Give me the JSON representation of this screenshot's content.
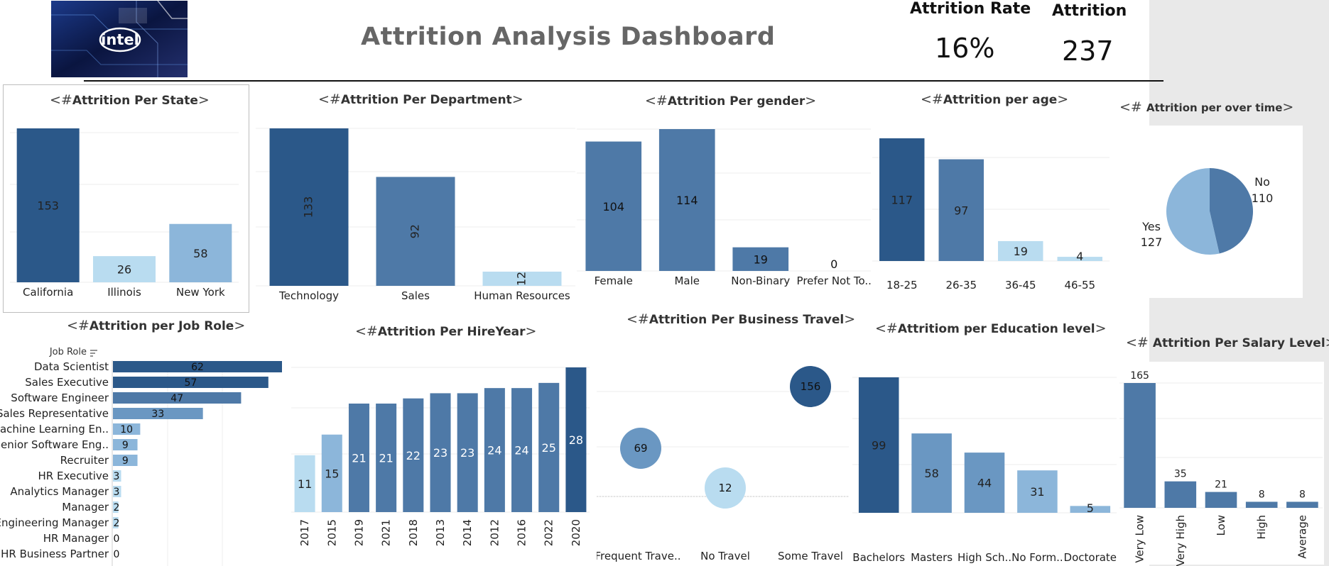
{
  "header": {
    "title": "Attrition Analysis Dashboard",
    "logo_text": "intel",
    "kpis": [
      {
        "label": "Attrition Rate",
        "value": "16%"
      },
      {
        "label": "Attrition",
        "value": "237"
      }
    ]
  },
  "colors": {
    "dark": "#2b5889",
    "mid": "#4e79a7",
    "midlight": "#6a97c2",
    "light": "#8cb6da",
    "pale": "#b9dcf0"
  },
  "chart_data": [
    {
      "id": "state",
      "type": "bar",
      "title": "Attrition Per State",
      "title_prefix": "<#",
      "title_suffix": ">",
      "categories": [
        "California",
        "Illinois",
        "New York"
      ],
      "values": [
        153,
        26,
        58
      ],
      "ylim": [
        0,
        153
      ]
    },
    {
      "id": "department",
      "type": "bar",
      "title": "Attrition Per Department",
      "title_prefix": "<#",
      "title_suffix": ">",
      "categories": [
        "Technology",
        "Sales",
        "Human Resources"
      ],
      "values": [
        133,
        92,
        12
      ],
      "ylim": [
        0,
        133
      ]
    },
    {
      "id": "gender",
      "type": "bar",
      "title": "Attrition Per gender",
      "title_prefix": "<#",
      "title_suffix": ">",
      "categories": [
        "Female",
        "Male",
        "Non-Binary",
        "Prefer Not To.."
      ],
      "values": [
        104,
        114,
        19,
        0
      ],
      "ylim": [
        0,
        114
      ]
    },
    {
      "id": "age",
      "type": "bar",
      "title": "Attrition per age",
      "title_prefix": "<#",
      "title_suffix": ">",
      "categories": [
        "18-25",
        "26-35",
        "36-45",
        "46-55"
      ],
      "values": [
        117,
        97,
        19,
        4
      ],
      "ylim": [
        0,
        117
      ]
    },
    {
      "id": "overtime",
      "type": "pie",
      "title": "Attrition per over time",
      "title_prefix": "<# ",
      "title_suffix": ">",
      "categories": [
        "No",
        "Yes"
      ],
      "values": [
        110,
        127
      ]
    },
    {
      "id": "jobrole",
      "type": "bar",
      "orientation": "horizontal",
      "title": "Attrition per Job Role",
      "title_prefix": "<#",
      "title_suffix": ">",
      "axis_header": "Job Role",
      "categories": [
        "Data Scientist",
        "Sales Executive",
        "Software Engineer",
        "Sales Representative",
        "Machine Learning En..",
        "Senior Software Eng..",
        "Recruiter",
        "HR Executive",
        "Analytics Manager",
        "Manager",
        "Engineering Manager",
        "HR Manager",
        "HR Business Partner"
      ],
      "values": [
        62,
        57,
        47,
        33,
        10,
        9,
        9,
        3,
        3,
        2,
        2,
        0,
        0
      ],
      "xlim": [
        0,
        62
      ]
    },
    {
      "id": "hireyear",
      "type": "bar",
      "title": "Attrition Per HireYear",
      "title_prefix": "<#",
      "title_suffix": ">",
      "categories": [
        "2017",
        "2015",
        "2019",
        "2021",
        "2018",
        "2013",
        "2014",
        "2012",
        "2016",
        "2022",
        "2020"
      ],
      "values": [
        11,
        15,
        21,
        21,
        22,
        23,
        23,
        24,
        24,
        25,
        28
      ],
      "ylim": [
        0,
        28
      ]
    },
    {
      "id": "travel",
      "type": "scatter",
      "title": "Attrition Per Business Travel",
      "title_prefix": "<#",
      "title_suffix": ">",
      "categories": [
        "Frequent Trave..",
        "No Travel",
        "Some Travel"
      ],
      "values": [
        69,
        12,
        156
      ]
    },
    {
      "id": "education",
      "type": "bar",
      "title": "Attritiom per Education level",
      "title_prefix": "<#",
      "title_suffix": ">",
      "categories": [
        "Bachelors",
        "Masters",
        "High Sch..",
        "No Form..",
        "Doctorate"
      ],
      "values": [
        99,
        58,
        44,
        31,
        5
      ],
      "ylim": [
        0,
        99
      ]
    },
    {
      "id": "salary",
      "type": "bar",
      "title": "Attrition Per Salary Level",
      "title_prefix": "<# ",
      "title_suffix": ">",
      "categories": [
        "Very Low",
        "Very High",
        "Low",
        "High",
        "Average"
      ],
      "values": [
        165,
        35,
        21,
        8,
        8
      ],
      "ylim": [
        0,
        165
      ]
    }
  ]
}
